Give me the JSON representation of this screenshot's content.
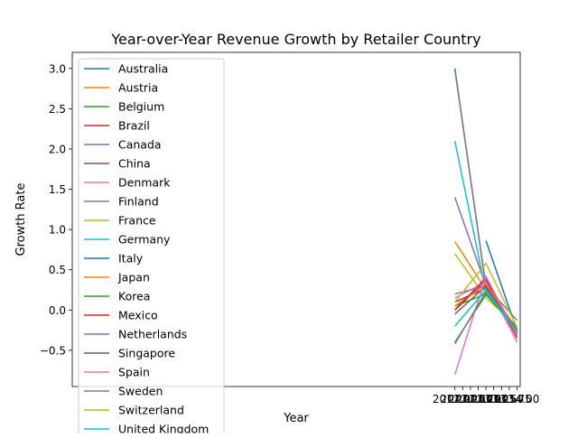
{
  "chart_data": {
    "type": "line",
    "title": "Year-over-Year Revenue Growth by Retailer Country",
    "xlabel": "Year",
    "ylabel": "Growth Rate",
    "xlim": [
      1999.7,
      2014.1
    ],
    "ylim": [
      -0.95,
      3.2
    ],
    "xticks": [
      2012.0,
      2012.25,
      2012.5,
      2012.75,
      2013.0,
      2013.25,
      2013.5,
      2013.75,
      2014.0
    ],
    "xtick_labels": [
      "2012.00",
      "2012.25",
      "2012.50",
      "2012.75",
      "2013.00",
      "2013.25",
      "2013.50",
      "2013.75",
      "2014.00"
    ],
    "yticks": [
      -0.5,
      0.0,
      0.5,
      1.0,
      1.5,
      2.0,
      2.5,
      3.0
    ],
    "ytick_labels": [
      "−0.5",
      "0.0",
      "0.5",
      "1.0",
      "1.5",
      "2.0",
      "2.5",
      "3.0"
    ],
    "legend_position": "upper-left",
    "series": [
      {
        "name": "Australia",
        "color": "#1f77b4",
        "x": [
          2012,
          2013,
          2014
        ],
        "values": [
          3.0,
          0.28,
          -0.25
        ]
      },
      {
        "name": "Austria",
        "color": "#ff7f0e",
        "x": [
          2012,
          2013,
          2014
        ],
        "values": [
          0.85,
          0.25,
          -0.27
        ]
      },
      {
        "name": "Belgium",
        "color": "#2ca02c",
        "x": [
          2012,
          2013,
          2014
        ],
        "values": [
          0.05,
          0.2,
          -0.26
        ]
      },
      {
        "name": "Brazil",
        "color": "#d62728",
        "x": [
          2012,
          2013,
          2014
        ],
        "values": [
          0.0,
          0.37,
          -0.35
        ]
      },
      {
        "name": "Canada",
        "color": "#9467bd",
        "x": [
          2012,
          2013,
          2014
        ],
        "values": [
          1.4,
          0.3,
          -0.24
        ]
      },
      {
        "name": "China",
        "color": "#8c564b",
        "x": [
          2012,
          2013,
          2014
        ],
        "values": [
          0.1,
          0.27,
          -0.25
        ]
      },
      {
        "name": "Denmark",
        "color": "#e377c2",
        "x": [
          2012,
          2013,
          2014
        ],
        "values": [
          0.15,
          0.35,
          -0.4
        ]
      },
      {
        "name": "Finland",
        "color": "#7f7f7f",
        "x": [
          2012,
          2013,
          2014
        ],
        "values": [
          2.98,
          0.3,
          -0.13
        ]
      },
      {
        "name": "France",
        "color": "#bcbd22",
        "x": [
          2012,
          2013,
          2014
        ],
        "values": [
          0.7,
          0.15,
          -0.2
        ]
      },
      {
        "name": "Germany",
        "color": "#17becf",
        "x": [
          2012,
          2013,
          2014
        ],
        "values": [
          2.1,
          0.22,
          -0.27
        ]
      },
      {
        "name": "Italy",
        "color": "#1f77b4",
        "x": [
          2013,
          2014
        ],
        "values": [
          0.86,
          -0.26
        ]
      },
      {
        "name": "Japan",
        "color": "#ff7f0e",
        "x": [
          2012,
          2013,
          2014
        ],
        "values": [
          0.05,
          0.32,
          -0.25
        ]
      },
      {
        "name": "Korea",
        "color": "#2ca02c",
        "x": [
          2012,
          2013,
          2014
        ],
        "values": [
          -0.4,
          0.19,
          -0.22
        ]
      },
      {
        "name": "Mexico",
        "color": "#d62728",
        "x": [
          2012,
          2013,
          2014
        ],
        "values": [
          0.0,
          0.4,
          -0.3
        ]
      },
      {
        "name": "Netherlands",
        "color": "#9467bd",
        "x": [
          2012,
          2013,
          2014
        ],
        "values": [
          0.2,
          0.3,
          -0.27
        ]
      },
      {
        "name": "Singapore",
        "color": "#8c564b",
        "x": [
          2012,
          2013,
          2014
        ],
        "values": [
          -0.05,
          0.3,
          -0.3
        ]
      },
      {
        "name": "Spain",
        "color": "#e377c2",
        "x": [
          2012,
          2013,
          2014
        ],
        "values": [
          -0.8,
          0.42,
          -0.32
        ]
      },
      {
        "name": "Sweden",
        "color": "#7f7f7f",
        "x": [
          2012,
          2013,
          2014
        ],
        "values": [
          -0.42,
          0.23,
          -0.24
        ]
      },
      {
        "name": "Switzerland",
        "color": "#bcbd22",
        "x": [
          2012,
          2013,
          2014
        ],
        "values": [
          0.1,
          0.58,
          -0.22
        ]
      },
      {
        "name": "United Kingdom",
        "color": "#17becf",
        "x": [
          2012,
          2013,
          2014
        ],
        "values": [
          -0.2,
          0.25,
          -0.28
        ]
      }
    ]
  }
}
